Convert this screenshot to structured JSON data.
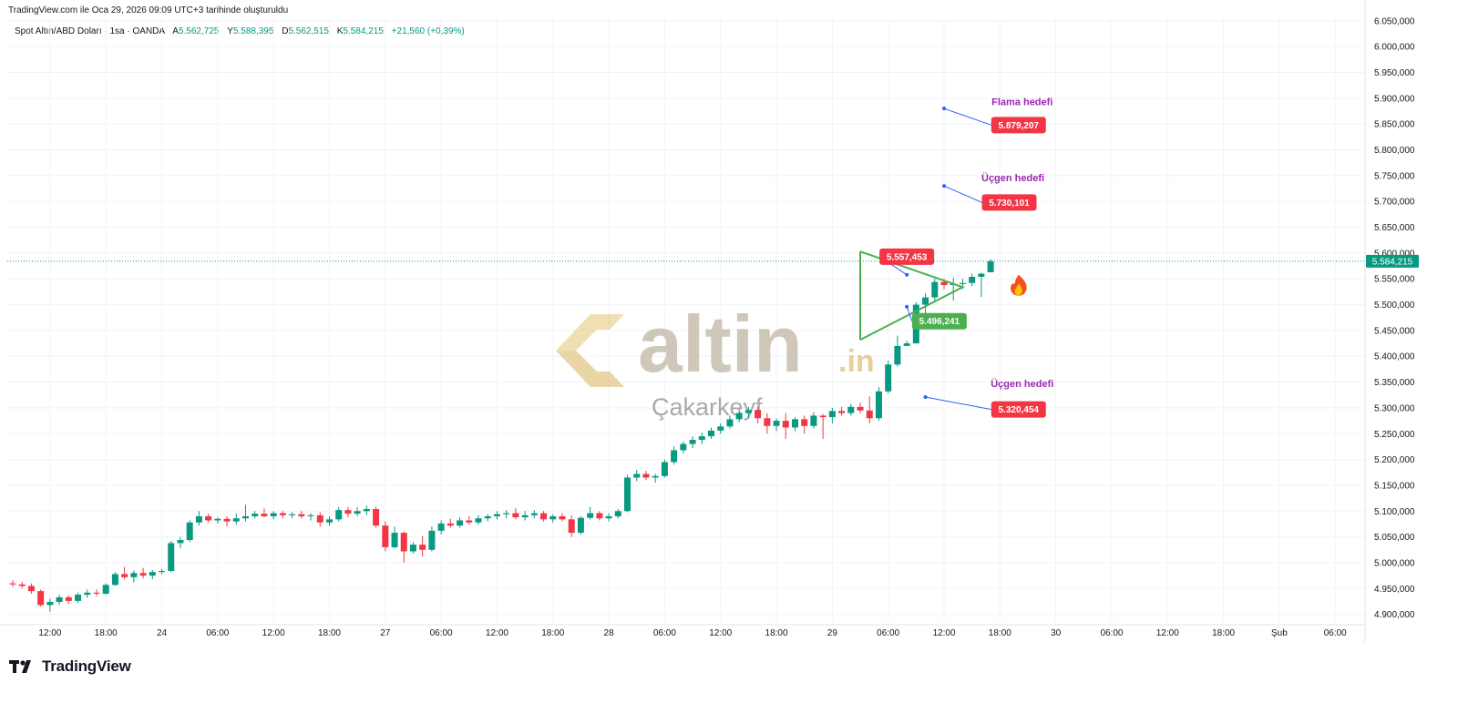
{
  "header": {
    "created_text": "TradingView.com ile Oca 29, 2026 09:09 UTC+3 tarihinde oluşturuldu"
  },
  "legend": {
    "symbol": "Spot Altın/ABD Doları · 1sa · OANDA",
    "open_label": "A",
    "open": "5.562,725",
    "high_label": "Y",
    "high": "5.588,395",
    "low_label": "D",
    "low": "5.562,515",
    "close_label": "K",
    "close": "5.584,215",
    "change": "+21,560 (+0,39%)"
  },
  "watermark": {
    "brand": "altin",
    "brand_suffix": ".in",
    "caption": "Çakarkeyf"
  },
  "footer": {
    "brand": "TradingView"
  },
  "colors": {
    "up": "#089981",
    "down": "#f23645",
    "pattern": "#4caf50",
    "annotation": "#9c27b0",
    "marker": "#f23645",
    "line": "#2962ff",
    "current_price": "#089981",
    "watermark": "#c9b48a"
  },
  "chart_data": {
    "type": "candlestick",
    "y_axis": {
      "ylim": [
        4887,
        6055
      ],
      "ticks": [
        "6.050,000",
        "6.000,000",
        "5.950,000",
        "5.900,000",
        "5.850,000",
        "5.800,000",
        "5.750,000",
        "5.700,000",
        "5.650,000",
        "5.600,000",
        "5.550,000",
        "5.500,000",
        "5.450,000",
        "5.400,000",
        "5.350,000",
        "5.300,000",
        "5.250,000",
        "5.200,000",
        "5.150,000",
        "5.100,000",
        "5.050,000",
        "5.000,000",
        "4.950,000",
        "4.900,000"
      ],
      "tick_values": [
        6050,
        6000,
        5950,
        5900,
        5850,
        5800,
        5750,
        5700,
        5650,
        5600,
        5550,
        5500,
        5450,
        5400,
        5350,
        5300,
        5250,
        5200,
        5150,
        5100,
        5050,
        5000,
        4950,
        4900
      ]
    },
    "x_axis": {
      "ticks": [
        {
          "label": "12:00",
          "i": 4
        },
        {
          "label": "18:00",
          "i": 10
        },
        {
          "label": "24",
          "i": 16
        },
        {
          "label": "06:00",
          "i": 22
        },
        {
          "label": "12:00",
          "i": 28
        },
        {
          "label": "18:00",
          "i": 34
        },
        {
          "label": "27",
          "i": 40
        },
        {
          "label": "06:00",
          "i": 46
        },
        {
          "label": "12:00",
          "i": 52
        },
        {
          "label": "18:00",
          "i": 58
        },
        {
          "label": "28",
          "i": 64
        },
        {
          "label": "06:00",
          "i": 70
        },
        {
          "label": "12:00",
          "i": 76
        },
        {
          "label": "18:00",
          "i": 82
        },
        {
          "label": "29",
          "i": 88
        },
        {
          "label": "06:00",
          "i": 94
        },
        {
          "label": "12:00",
          "i": 100
        },
        {
          "label": "18:00",
          "i": 106
        },
        {
          "label": "30",
          "i": 112
        },
        {
          "label": "06:00",
          "i": 118
        },
        {
          "label": "12:00",
          "i": 124
        },
        {
          "label": "18:00",
          "i": 130
        },
        {
          "label": "Şub",
          "i": 136
        },
        {
          "label": "06:00",
          "i": 142
        }
      ]
    },
    "current_price": {
      "label": "5.584,215",
      "value": 5584.215
    },
    "candles": [
      {
        "o": 4960,
        "h": 4966,
        "l": 4953,
        "c": 4958
      },
      {
        "o": 4958,
        "h": 4963,
        "l": 4950,
        "c": 4955
      },
      {
        "o": 4955,
        "h": 4960,
        "l": 4940,
        "c": 4945
      },
      {
        "o": 4945,
        "h": 4948,
        "l": 4915,
        "c": 4918
      },
      {
        "o": 4918,
        "h": 4930,
        "l": 4905,
        "c": 4924
      },
      {
        "o": 4924,
        "h": 4938,
        "l": 4918,
        "c": 4933
      },
      {
        "o": 4933,
        "h": 4937,
        "l": 4920,
        "c": 4926
      },
      {
        "o": 4926,
        "h": 4942,
        "l": 4922,
        "c": 4938
      },
      {
        "o": 4938,
        "h": 4948,
        "l": 4932,
        "c": 4942
      },
      {
        "o": 4942,
        "h": 4948,
        "l": 4935,
        "c": 4940
      },
      {
        "o": 4940,
        "h": 4960,
        "l": 4938,
        "c": 4957
      },
      {
        "o": 4957,
        "h": 4982,
        "l": 4955,
        "c": 4978
      },
      {
        "o": 4978,
        "h": 4992,
        "l": 4968,
        "c": 4972
      },
      {
        "o": 4972,
        "h": 4985,
        "l": 4962,
        "c": 4980
      },
      {
        "o": 4980,
        "h": 4990,
        "l": 4970,
        "c": 4975
      },
      {
        "o": 4975,
        "h": 4986,
        "l": 4968,
        "c": 4982
      },
      {
        "o": 4982,
        "h": 4988,
        "l": 4978,
        "c": 4984
      },
      {
        "o": 4984,
        "h": 5042,
        "l": 4982,
        "c": 5038
      },
      {
        "o": 5038,
        "h": 5050,
        "l": 5028,
        "c": 5044
      },
      {
        "o": 5044,
        "h": 5082,
        "l": 5040,
        "c": 5078
      },
      {
        "o": 5078,
        "h": 5100,
        "l": 5072,
        "c": 5090
      },
      {
        "o": 5090,
        "h": 5095,
        "l": 5078,
        "c": 5082
      },
      {
        "o": 5082,
        "h": 5088,
        "l": 5076,
        "c": 5085
      },
      {
        "o": 5085,
        "h": 5090,
        "l": 5070,
        "c": 5080
      },
      {
        "o": 5080,
        "h": 5095,
        "l": 5074,
        "c": 5086
      },
      {
        "o": 5086,
        "h": 5112,
        "l": 5080,
        "c": 5090
      },
      {
        "o": 5090,
        "h": 5100,
        "l": 5086,
        "c": 5095
      },
      {
        "o": 5095,
        "h": 5105,
        "l": 5088,
        "c": 5090
      },
      {
        "o": 5090,
        "h": 5100,
        "l": 5084,
        "c": 5096
      },
      {
        "o": 5096,
        "h": 5100,
        "l": 5086,
        "c": 5092
      },
      {
        "o": 5092,
        "h": 5098,
        "l": 5086,
        "c": 5094
      },
      {
        "o": 5094,
        "h": 5100,
        "l": 5086,
        "c": 5090
      },
      {
        "o": 5090,
        "h": 5096,
        "l": 5082,
        "c": 5092
      },
      {
        "o": 5092,
        "h": 5098,
        "l": 5070,
        "c": 5078
      },
      {
        "o": 5078,
        "h": 5090,
        "l": 5072,
        "c": 5084
      },
      {
        "o": 5084,
        "h": 5108,
        "l": 5080,
        "c": 5102
      },
      {
        "o": 5102,
        "h": 5108,
        "l": 5088,
        "c": 5095
      },
      {
        "o": 5095,
        "h": 5108,
        "l": 5090,
        "c": 5100
      },
      {
        "o": 5100,
        "h": 5110,
        "l": 5092,
        "c": 5104
      },
      {
        "o": 5104,
        "h": 5108,
        "l": 5068,
        "c": 5072
      },
      {
        "o": 5072,
        "h": 5080,
        "l": 5022,
        "c": 5030
      },
      {
        "o": 5030,
        "h": 5070,
        "l": 5028,
        "c": 5058
      },
      {
        "o": 5058,
        "h": 5060,
        "l": 5000,
        "c": 5022
      },
      {
        "o": 5022,
        "h": 5040,
        "l": 5018,
        "c": 5035
      },
      {
        "o": 5035,
        "h": 5052,
        "l": 5012,
        "c": 5025
      },
      {
        "o": 5025,
        "h": 5070,
        "l": 5022,
        "c": 5062
      },
      {
        "o": 5062,
        "h": 5082,
        "l": 5055,
        "c": 5076
      },
      {
        "o": 5076,
        "h": 5085,
        "l": 5068,
        "c": 5072
      },
      {
        "o": 5072,
        "h": 5088,
        "l": 5068,
        "c": 5082
      },
      {
        "o": 5082,
        "h": 5090,
        "l": 5074,
        "c": 5078
      },
      {
        "o": 5078,
        "h": 5092,
        "l": 5074,
        "c": 5086
      },
      {
        "o": 5086,
        "h": 5094,
        "l": 5080,
        "c": 5090
      },
      {
        "o": 5090,
        "h": 5100,
        "l": 5084,
        "c": 5094
      },
      {
        "o": 5094,
        "h": 5102,
        "l": 5086,
        "c": 5096
      },
      {
        "o": 5096,
        "h": 5106,
        "l": 5084,
        "c": 5088
      },
      {
        "o": 5088,
        "h": 5100,
        "l": 5082,
        "c": 5092
      },
      {
        "o": 5092,
        "h": 5102,
        "l": 5086,
        "c": 5096
      },
      {
        "o": 5096,
        "h": 5100,
        "l": 5080,
        "c": 5084
      },
      {
        "o": 5084,
        "h": 5094,
        "l": 5078,
        "c": 5090
      },
      {
        "o": 5090,
        "h": 5096,
        "l": 5080,
        "c": 5084
      },
      {
        "o": 5084,
        "h": 5092,
        "l": 5050,
        "c": 5058
      },
      {
        "o": 5058,
        "h": 5090,
        "l": 5055,
        "c": 5087
      },
      {
        "o": 5087,
        "h": 5108,
        "l": 5084,
        "c": 5096
      },
      {
        "o": 5096,
        "h": 5100,
        "l": 5082,
        "c": 5086
      },
      {
        "o": 5086,
        "h": 5096,
        "l": 5080,
        "c": 5090
      },
      {
        "o": 5090,
        "h": 5104,
        "l": 5086,
        "c": 5100
      },
      {
        "o": 5100,
        "h": 5170,
        "l": 5098,
        "c": 5165
      },
      {
        "o": 5165,
        "h": 5180,
        "l": 5158,
        "c": 5172
      },
      {
        "o": 5172,
        "h": 5178,
        "l": 5160,
        "c": 5165
      },
      {
        "o": 5165,
        "h": 5172,
        "l": 5155,
        "c": 5168
      },
      {
        "o": 5168,
        "h": 5200,
        "l": 5165,
        "c": 5195
      },
      {
        "o": 5195,
        "h": 5225,
        "l": 5190,
        "c": 5218
      },
      {
        "o": 5218,
        "h": 5235,
        "l": 5212,
        "c": 5230
      },
      {
        "o": 5230,
        "h": 5245,
        "l": 5222,
        "c": 5238
      },
      {
        "o": 5238,
        "h": 5252,
        "l": 5230,
        "c": 5245
      },
      {
        "o": 5245,
        "h": 5262,
        "l": 5240,
        "c": 5256
      },
      {
        "o": 5256,
        "h": 5270,
        "l": 5250,
        "c": 5264
      },
      {
        "o": 5264,
        "h": 5285,
        "l": 5260,
        "c": 5278
      },
      {
        "o": 5278,
        "h": 5298,
        "l": 5272,
        "c": 5290
      },
      {
        "o": 5290,
        "h": 5302,
        "l": 5280,
        "c": 5296
      },
      {
        "o": 5296,
        "h": 5302,
        "l": 5270,
        "c": 5280
      },
      {
        "o": 5280,
        "h": 5290,
        "l": 5250,
        "c": 5265
      },
      {
        "o": 5265,
        "h": 5280,
        "l": 5255,
        "c": 5275
      },
      {
        "o": 5275,
        "h": 5290,
        "l": 5240,
        "c": 5262
      },
      {
        "o": 5262,
        "h": 5282,
        "l": 5255,
        "c": 5278
      },
      {
        "o": 5278,
        "h": 5285,
        "l": 5250,
        "c": 5265
      },
      {
        "o": 5265,
        "h": 5292,
        "l": 5260,
        "c": 5285
      },
      {
        "o": 5285,
        "h": 5288,
        "l": 5240,
        "c": 5282
      },
      {
        "o": 5282,
        "h": 5300,
        "l": 5270,
        "c": 5294
      },
      {
        "o": 5294,
        "h": 5302,
        "l": 5285,
        "c": 5290
      },
      {
        "o": 5290,
        "h": 5308,
        "l": 5285,
        "c": 5302
      },
      {
        "o": 5302,
        "h": 5310,
        "l": 5290,
        "c": 5295
      },
      {
        "o": 5295,
        "h": 5322,
        "l": 5270,
        "c": 5280
      },
      {
        "o": 5280,
        "h": 5340,
        "l": 5275,
        "c": 5332
      },
      {
        "o": 5332,
        "h": 5392,
        "l": 5328,
        "c": 5384
      },
      {
        "o": 5384,
        "h": 5440,
        "l": 5380,
        "c": 5420
      },
      {
        "o": 5420,
        "h": 5430,
        "l": 5422,
        "c": 5425
      },
      {
        "o": 5425,
        "h": 5505,
        "l": 5425,
        "c": 5500
      },
      {
        "o": 5500,
        "h": 5522,
        "l": 5460,
        "c": 5514
      },
      {
        "o": 5514,
        "h": 5550,
        "l": 5508,
        "c": 5544
      },
      {
        "o": 5544,
        "h": 5550,
        "l": 5530,
        "c": 5538
      },
      {
        "o": 5538,
        "h": 5552,
        "l": 5508,
        "c": 5540
      },
      {
        "o": 5540,
        "h": 5550,
        "l": 5530,
        "c": 5542
      },
      {
        "o": 5542,
        "h": 5560,
        "l": 5536,
        "c": 5554
      },
      {
        "o": 5554,
        "h": 5562,
        "l": 5515,
        "c": 5560
      },
      {
        "o": 5562.725,
        "h": 5588.395,
        "l": 5562.515,
        "c": 5584.215
      }
    ],
    "pattern_triangle": {
      "points": [
        {
          "i": 91,
          "v": 5603
        },
        {
          "i": 102,
          "v": 5534
        },
        {
          "i": 91,
          "v": 5432
        }
      ]
    },
    "annotations": [
      {
        "title": "Flama hedefi",
        "label": "5.879,207",
        "value": 5879.207,
        "anchor_i": 100,
        "anchor_v": 5880,
        "box_i": 108,
        "box_v": 5848,
        "title_v": 5872,
        "kind": "red"
      },
      {
        "title": "Üçgen hedefi",
        "label": "5.730,101",
        "value": 5730.101,
        "anchor_i": 100,
        "anchor_v": 5730,
        "box_i": 107,
        "box_v": 5698,
        "title_v": 5725,
        "kind": "red"
      },
      {
        "title": "",
        "label": "5.557,453",
        "value": 5557.453,
        "anchor_i": 96,
        "anchor_v": 5558,
        "box_i": 96,
        "box_v": 5593,
        "title_v": null,
        "kind": "red"
      },
      {
        "title": "",
        "label": "5.496,241",
        "value": 5496.241,
        "anchor_i": 96,
        "anchor_v": 5496,
        "box_i": 99.5,
        "box_v": 5468,
        "title_v": null,
        "kind": "green"
      },
      {
        "title": "Üçgen hedefi",
        "label": "5.320,454",
        "value": 5320.454,
        "anchor_i": 98,
        "anchor_v": 5321,
        "box_i": 108,
        "box_v": 5297,
        "title_v": 5326,
        "kind": "red"
      }
    ],
    "fire_icon": {
      "i": 108,
      "v": 5537
    }
  }
}
